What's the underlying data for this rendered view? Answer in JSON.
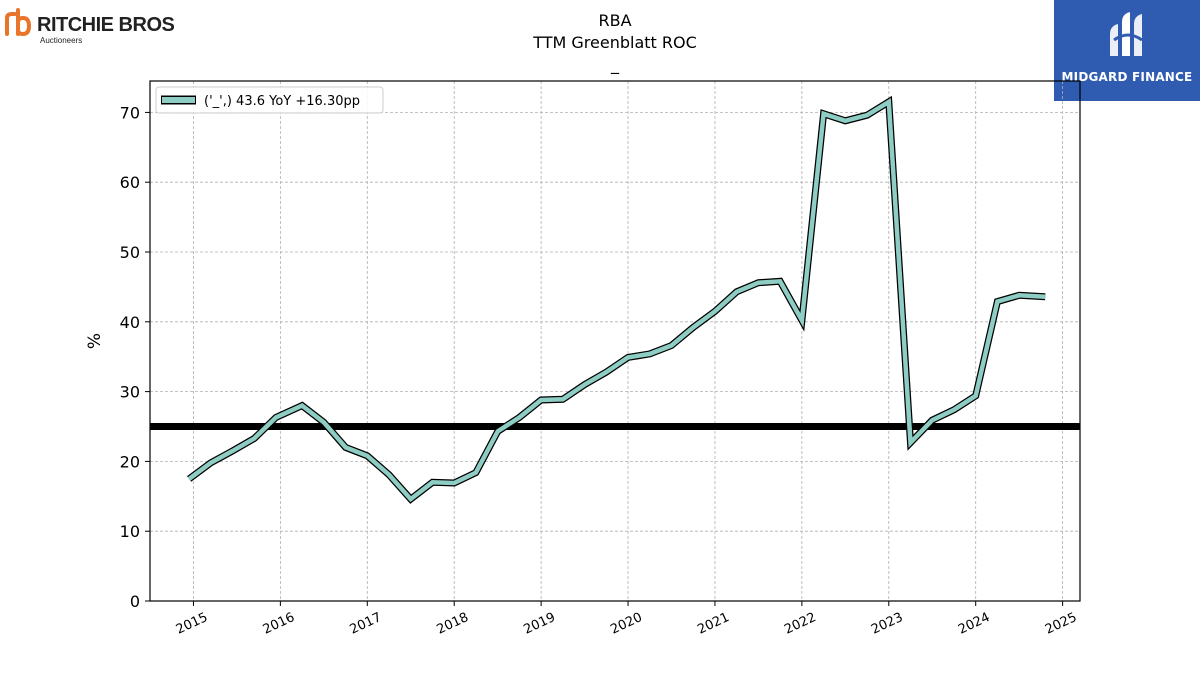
{
  "company_logo": {
    "brand": "RITCHIE BROS.",
    "subtitle": "Auctioneers",
    "accent": "#e8752a"
  },
  "publisher_logo": {
    "brand": "MIDGARD FINANCE",
    "background": "#2f5bb0"
  },
  "chart_data": {
    "type": "line",
    "title_lines": [
      "RBA",
      "TTM Greenblatt ROC",
      "_"
    ],
    "ylabel": "%",
    "xlabel": "",
    "xlim": [
      2014.5,
      2025.2
    ],
    "ylim": [
      0,
      74.5
    ],
    "xticks": [
      2015,
      2016,
      2017,
      2018,
      2019,
      2020,
      2021,
      2022,
      2023,
      2024,
      2025
    ],
    "yticks": [
      0,
      10,
      20,
      30,
      40,
      50,
      60,
      70
    ],
    "grid": true,
    "legend_position": "top-left",
    "reference_line": {
      "y": 25,
      "color": "#000000"
    },
    "series": [
      {
        "name": "('_',) 43.6 YoY +16.30pp",
        "color": "#8ecdc3",
        "x": [
          2014.95,
          2015.2,
          2015.45,
          2015.7,
          2015.95,
          2016.25,
          2016.5,
          2016.75,
          2017.0,
          2017.25,
          2017.5,
          2017.75,
          2018.0,
          2018.25,
          2018.5,
          2018.75,
          2019.0,
          2019.25,
          2019.5,
          2019.75,
          2020.0,
          2020.25,
          2020.5,
          2020.75,
          2021.0,
          2021.25,
          2021.5,
          2021.75,
          2022.0,
          2022.25,
          2022.5,
          2022.75,
          2023.0,
          2023.25,
          2023.5,
          2023.75,
          2024.0,
          2024.25,
          2024.5,
          2024.8
        ],
        "y": [
          17.5,
          19.8,
          21.5,
          23.3,
          26.3,
          28.0,
          25.6,
          22.0,
          20.8,
          18.1,
          14.6,
          17.0,
          16.9,
          18.4,
          24.3,
          26.3,
          28.8,
          28.9,
          31.0,
          32.8,
          34.9,
          35.4,
          36.6,
          39.2,
          41.5,
          44.3,
          45.6,
          45.8,
          40.2,
          69.8,
          68.8,
          69.6,
          71.5,
          22.7,
          25.9,
          27.4,
          29.4,
          42.9,
          43.8,
          43.6
        ]
      }
    ]
  }
}
